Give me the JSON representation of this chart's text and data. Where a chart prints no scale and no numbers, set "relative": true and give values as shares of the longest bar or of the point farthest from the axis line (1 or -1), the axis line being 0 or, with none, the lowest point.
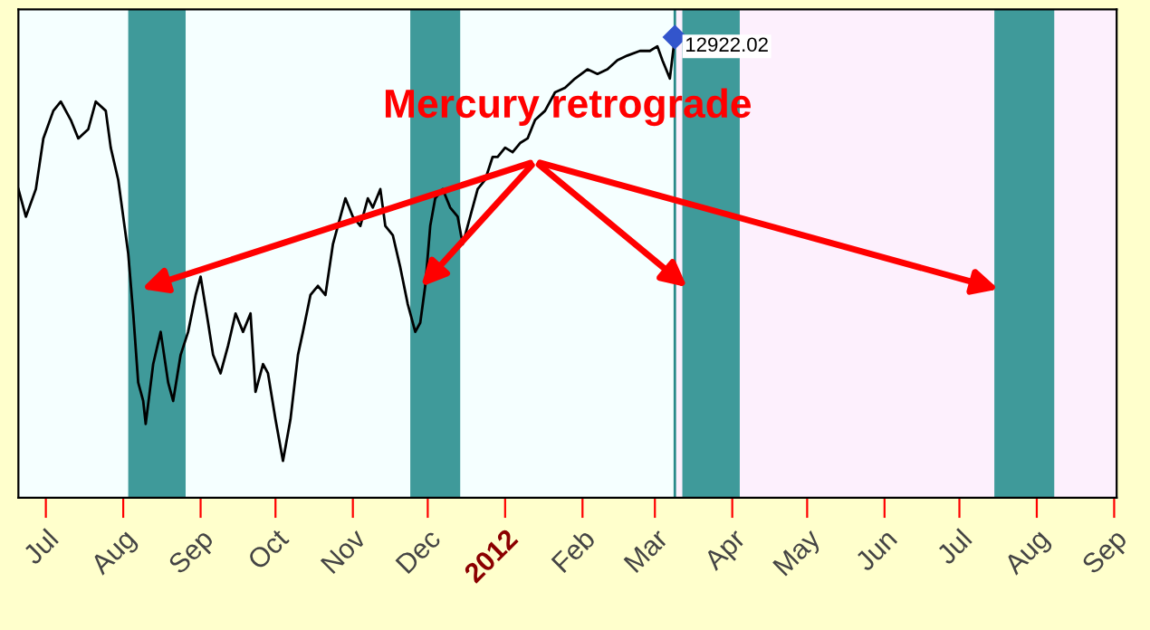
{
  "chart_data": {
    "type": "line",
    "relative": true,
    "grid": false,
    "legend": false,
    "marker": "none",
    "line_style": "solid",
    "x": [
      "2011-06-20",
      "2011-06-23",
      "2011-06-27",
      "2011-06-30",
      "2011-07-04",
      "2011-07-07",
      "2011-07-11",
      "2011-07-14",
      "2011-07-18",
      "2011-07-21",
      "2011-07-25",
      "2011-07-27",
      "2011-07-30",
      "2011-08-01",
      "2011-08-03",
      "2011-08-05",
      "2011-08-07",
      "2011-08-09",
      "2011-08-10",
      "2011-08-13",
      "2011-08-16",
      "2011-08-19",
      "2011-08-21",
      "2011-08-24",
      "2011-08-27",
      "2011-08-30",
      "2011-09-01",
      "2011-09-04",
      "2011-09-06",
      "2011-09-09",
      "2011-09-12",
      "2011-09-15",
      "2011-09-18",
      "2011-09-21",
      "2011-09-23",
      "2011-09-26",
      "2011-09-28",
      "2011-10-01",
      "2011-10-04",
      "2011-10-07",
      "2011-10-10",
      "2011-10-12",
      "2011-10-15",
      "2011-10-18",
      "2011-10-21",
      "2011-10-24",
      "2011-10-26",
      "2011-10-29",
      "2011-11-01",
      "2011-11-04",
      "2011-11-07",
      "2011-11-09",
      "2011-11-12",
      "2011-11-14",
      "2011-11-17",
      "2011-11-20",
      "2011-11-23",
      "2011-11-26",
      "2011-11-28",
      "2011-11-30",
      "2011-12-02",
      "2011-12-04",
      "2011-12-07",
      "2011-12-10",
      "2011-12-13",
      "2011-12-15",
      "2011-12-18",
      "2011-12-21",
      "2011-12-24",
      "2011-12-27",
      "2011-12-29",
      "2012-01-01",
      "2012-01-04",
      "2012-01-07",
      "2012-01-10",
      "2012-01-13",
      "2012-01-17",
      "2012-01-21",
      "2012-01-25",
      "2012-01-29",
      "2012-02-03",
      "2012-02-07",
      "2012-02-11",
      "2012-02-15",
      "2012-02-19",
      "2012-02-24",
      "2012-02-28",
      "2012-03-02",
      "2012-03-04",
      "2012-03-07",
      "2012-03-09"
    ],
    "series": [
      {
        "color": "#000000",
        "values": [
          0.67,
          0.61,
          0.67,
          0.78,
          0.84,
          0.86,
          0.82,
          0.78,
          0.8,
          0.86,
          0.84,
          0.76,
          0.69,
          0.61,
          0.53,
          0.4,
          0.25,
          0.21,
          0.16,
          0.29,
          0.36,
          0.25,
          0.21,
          0.31,
          0.36,
          0.44,
          0.48,
          0.38,
          0.31,
          0.27,
          0.33,
          0.4,
          0.36,
          0.4,
          0.23,
          0.29,
          0.27,
          0.17,
          0.08,
          0.17,
          0.31,
          0.36,
          0.44,
          0.46,
          0.44,
          0.55,
          0.59,
          0.65,
          0.61,
          0.59,
          0.65,
          0.63,
          0.67,
          0.59,
          0.57,
          0.5,
          0.42,
          0.36,
          0.38,
          0.46,
          0.59,
          0.65,
          0.67,
          0.63,
          0.61,
          0.55,
          0.61,
          0.67,
          0.69,
          0.74,
          0.74,
          0.76,
          0.75,
          0.77,
          0.78,
          0.82,
          0.84,
          0.88,
          0.89,
          0.91,
          0.93,
          0.92,
          0.93,
          0.95,
          0.96,
          0.97,
          0.97,
          0.98,
          0.95,
          0.91,
          1.0
        ]
      }
    ],
    "xlim": [
      "2011-06-20",
      "2012-09-02"
    ],
    "xticks": [
      {
        "value": "2011-07-01",
        "label": "Jul"
      },
      {
        "value": "2011-08-01",
        "label": "Aug"
      },
      {
        "value": "2011-09-01",
        "label": "Sep"
      },
      {
        "value": "2011-10-01",
        "label": "Oct"
      },
      {
        "value": "2011-11-01",
        "label": "Nov"
      },
      {
        "value": "2011-12-01",
        "label": "Dec"
      },
      {
        "value": "2012-01-01",
        "label": "2012"
      },
      {
        "value": "2012-02-01",
        "label": "Feb"
      },
      {
        "value": "2012-03-01",
        "label": "Mar"
      },
      {
        "value": "2012-04-01",
        "label": "Apr"
      },
      {
        "value": "2012-05-01",
        "label": "May"
      },
      {
        "value": "2012-06-01",
        "label": "Jun"
      },
      {
        "value": "2012-07-01",
        "label": "Jul"
      },
      {
        "value": "2012-08-01",
        "label": "Aug"
      },
      {
        "value": "2012-09-01",
        "label": "Sep"
      }
    ],
    "bands": [
      {
        "axis": "x",
        "from": "2012-03-09",
        "to": "2012-09-02",
        "label": null,
        "color": "#fdf0fd"
      },
      {
        "axis": "x",
        "from": "2011-08-03",
        "to": "2011-08-26",
        "label": null,
        "color": "#3f9a9a"
      },
      {
        "axis": "x",
        "from": "2011-11-24",
        "to": "2011-12-14",
        "label": null,
        "color": "#3f9a9a"
      },
      {
        "axis": "x",
        "from": "2012-03-12",
        "to": "2012-04-04",
        "label": null,
        "color": "#3f9a9a"
      },
      {
        "axis": "x",
        "from": "2012-07-15",
        "to": "2012-08-08",
        "label": null,
        "color": "#3f9a9a"
      }
    ],
    "ref_lines": [
      {
        "axis": "x",
        "value": "2012-03-09",
        "label": null,
        "color": "#2a8a8a",
        "line_style": "solid"
      }
    ],
    "annotations": [
      "Mercury retrograde",
      {
        "text": "12922.02",
        "x": "2012-03-09",
        "y": 1.0
      }
    ]
  }
}
